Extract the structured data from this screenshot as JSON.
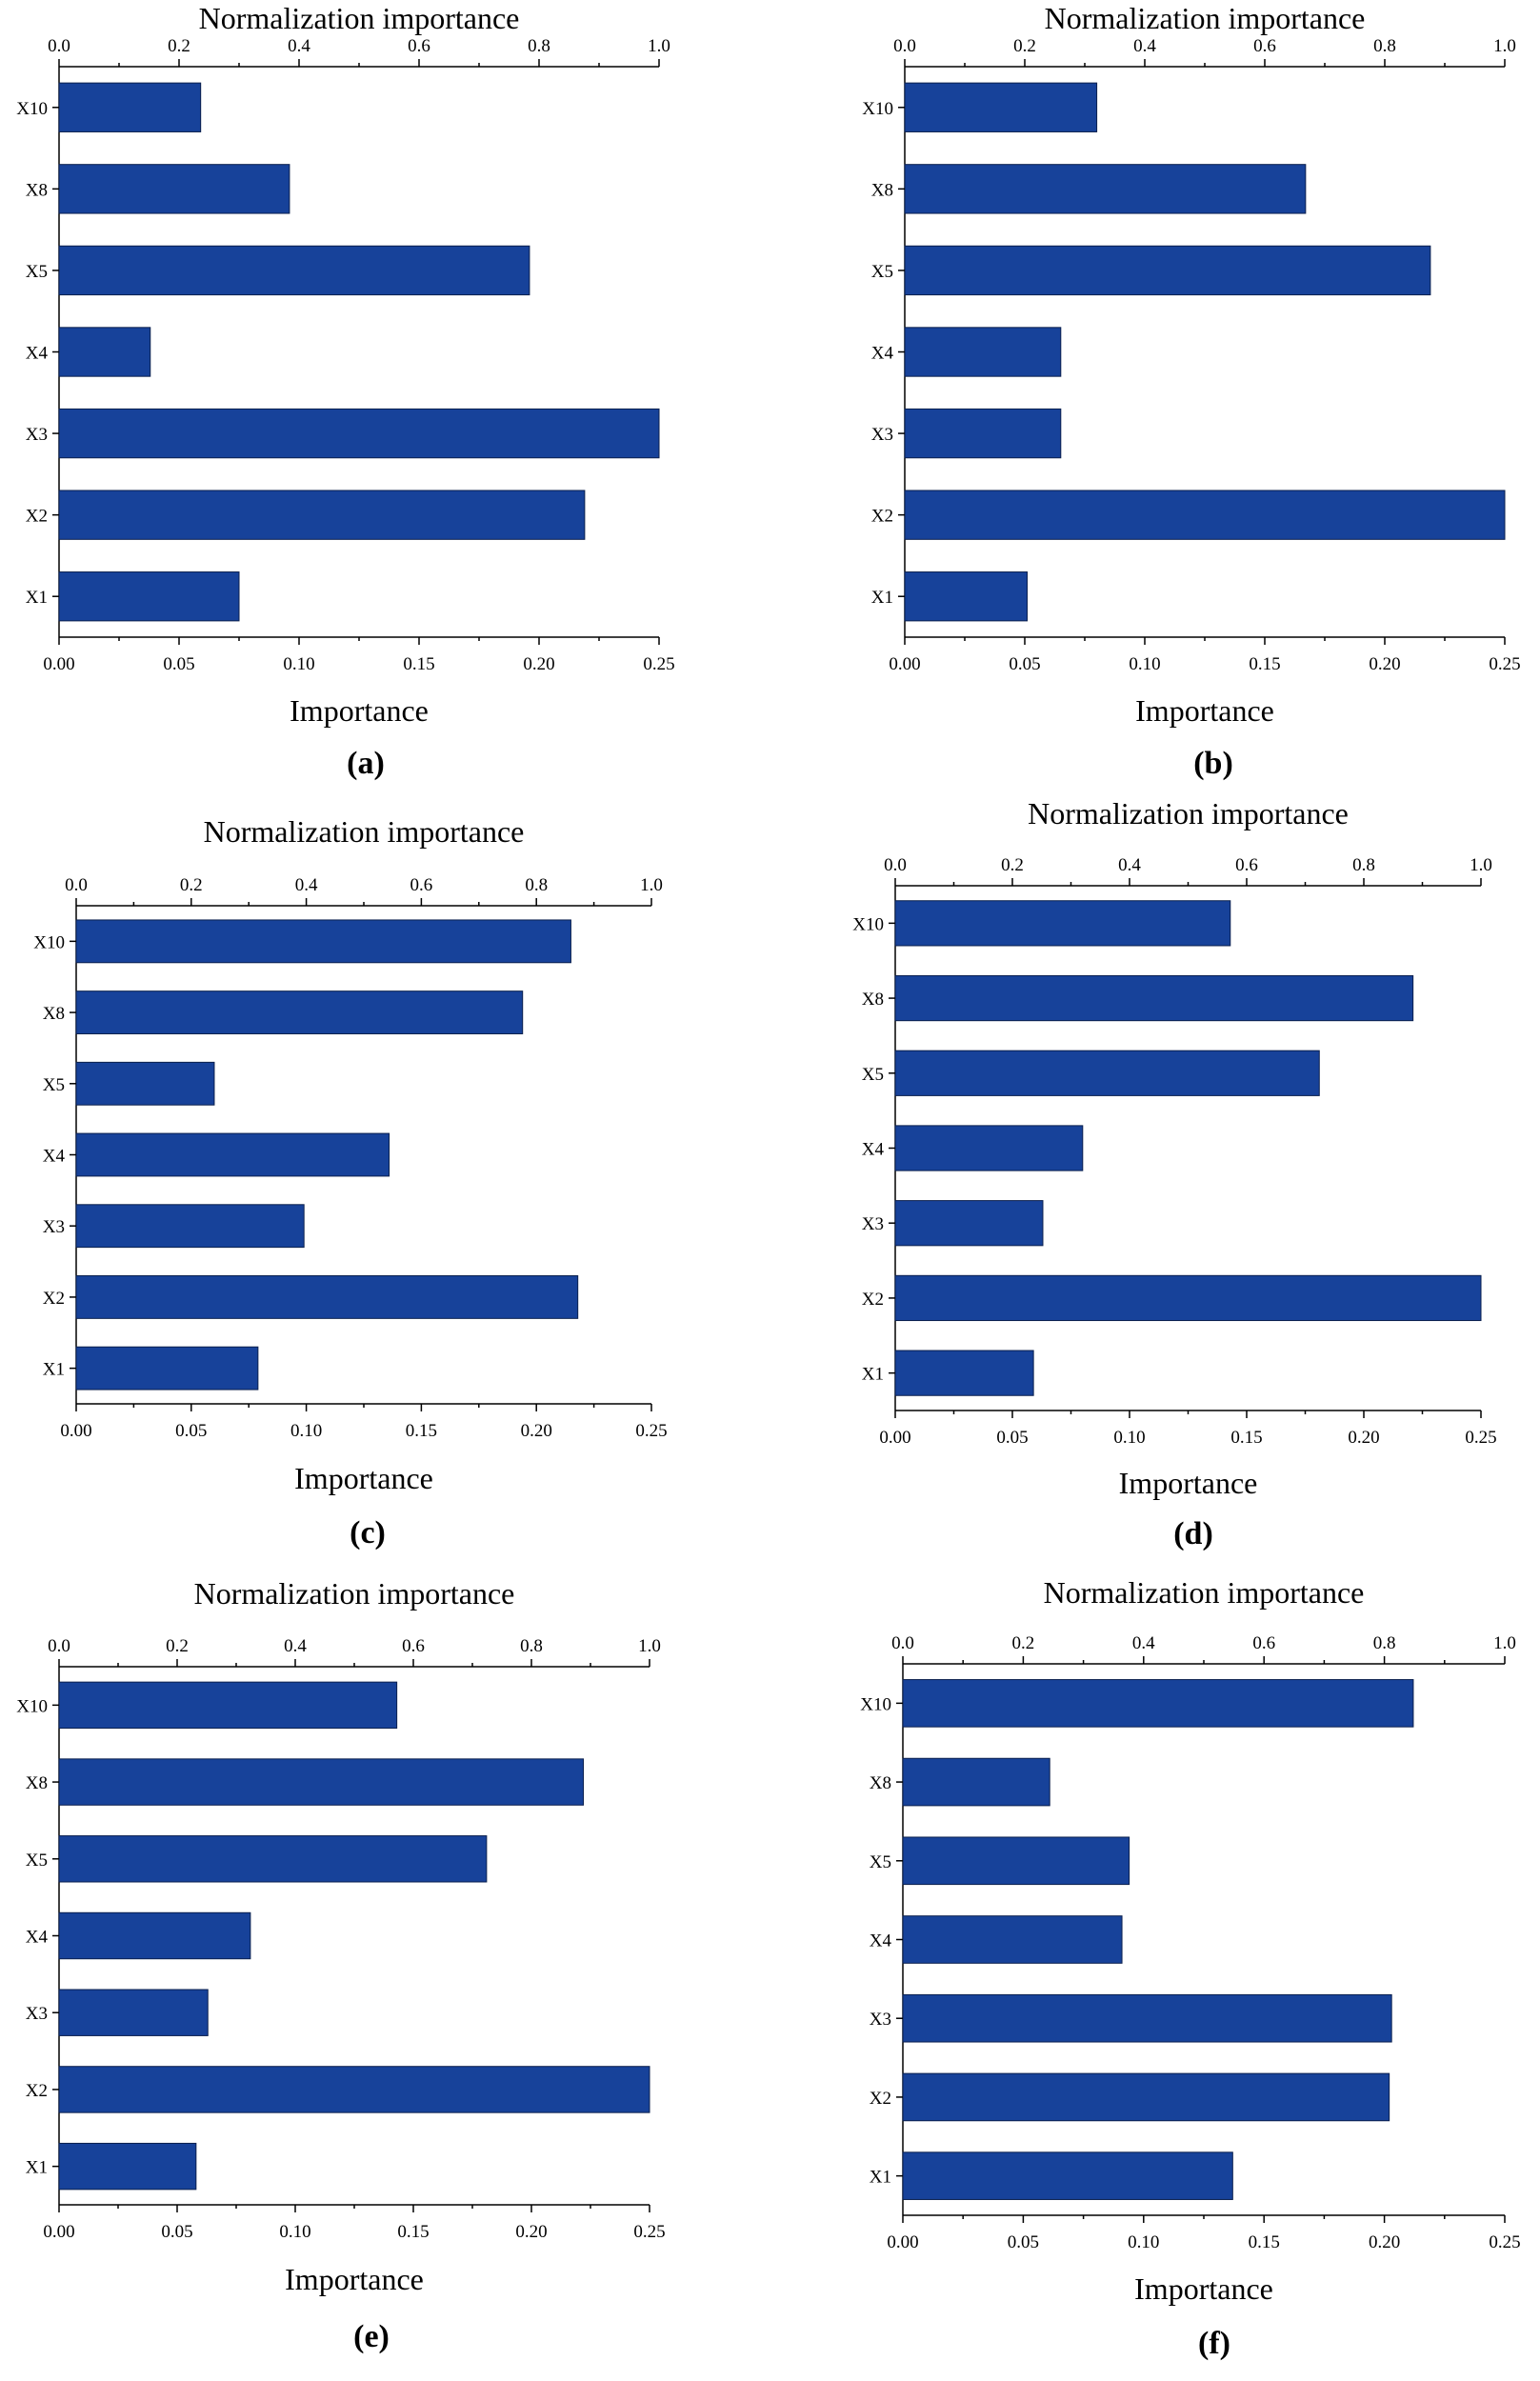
{
  "colors": {
    "bar": "#17429a",
    "bar_edge": "#0a1f4d",
    "axis": "#000000"
  },
  "chart_data": [
    {
      "type": "bar",
      "orientation": "horizontal",
      "panel_label": "(a)",
      "title": "Normalization importance",
      "xlabel": "Importance",
      "categories": [
        "X10",
        "X8",
        "X5",
        "X4",
        "X3",
        "X2",
        "X1"
      ],
      "values": [
        0.059,
        0.096,
        0.196,
        0.038,
        0.25,
        0.219,
        0.075
      ],
      "xlim": [
        0,
        0.25
      ],
      "x_ticks": [
        "0.00",
        "0.05",
        "0.10",
        "0.15",
        "0.20",
        "0.25"
      ],
      "top_xlim": [
        0,
        1.0
      ],
      "top_ticks": [
        "0.0",
        "0.2",
        "0.4",
        "0.6",
        "0.8",
        "1.0"
      ]
    },
    {
      "type": "bar",
      "orientation": "horizontal",
      "panel_label": "(b)",
      "title": "Normalization importance",
      "xlabel": "Importance",
      "categories": [
        "X10",
        "X8",
        "X5",
        "X4",
        "X3",
        "X2",
        "X1"
      ],
      "values": [
        0.08,
        0.167,
        0.219,
        0.065,
        0.065,
        0.25,
        0.051
      ],
      "xlim": [
        0,
        0.25
      ],
      "x_ticks": [
        "0.00",
        "0.05",
        "0.10",
        "0.15",
        "0.20",
        "0.25"
      ],
      "top_xlim": [
        0,
        1.0
      ],
      "top_ticks": [
        "0.0",
        "0.2",
        "0.4",
        "0.6",
        "0.8",
        "1.0"
      ]
    },
    {
      "type": "bar",
      "orientation": "horizontal",
      "panel_label": "(c)",
      "title": "Normalization importance",
      "xlabel": "Importance",
      "categories": [
        "X10",
        "X8",
        "X5",
        "X4",
        "X3",
        "X2",
        "X1"
      ],
      "values": [
        0.215,
        0.194,
        0.06,
        0.136,
        0.099,
        0.218,
        0.079
      ],
      "xlim": [
        0,
        0.25
      ],
      "x_ticks": [
        "0.00",
        "0.05",
        "0.10",
        "0.15",
        "0.20",
        "0.25"
      ],
      "top_xlim": [
        0,
        1.0
      ],
      "top_ticks": [
        "0.0",
        "0.2",
        "0.4",
        "0.6",
        "0.8",
        "1.0"
      ]
    },
    {
      "type": "bar",
      "orientation": "horizontal",
      "panel_label": "(d)",
      "title": "Normalization importance",
      "xlabel": "Importance",
      "categories": [
        "X10",
        "X8",
        "X5",
        "X4",
        "X3",
        "X2",
        "X1"
      ],
      "values": [
        0.143,
        0.221,
        0.181,
        0.08,
        0.063,
        0.25,
        0.059
      ],
      "xlim": [
        0,
        0.25
      ],
      "x_ticks": [
        "0.00",
        "0.05",
        "0.10",
        "0.15",
        "0.20",
        "0.25"
      ],
      "top_xlim": [
        0,
        1.0
      ],
      "top_ticks": [
        "0.0",
        "0.2",
        "0.4",
        "0.6",
        "0.8",
        "1.0"
      ]
    },
    {
      "type": "bar",
      "orientation": "horizontal",
      "panel_label": "(e)",
      "title": "Normalization importance",
      "xlabel": "Importance",
      "categories": [
        "X10",
        "X8",
        "X5",
        "X4",
        "X3",
        "X2",
        "X1"
      ],
      "values": [
        0.143,
        0.222,
        0.181,
        0.081,
        0.063,
        0.25,
        0.058
      ],
      "xlim": [
        0,
        0.25
      ],
      "x_ticks": [
        "0.00",
        "0.05",
        "0.10",
        "0.15",
        "0.20",
        "0.25"
      ],
      "top_xlim": [
        0,
        1.0
      ],
      "top_ticks": [
        "0.0",
        "0.2",
        "0.4",
        "0.6",
        "0.8",
        "1.0"
      ]
    },
    {
      "type": "bar",
      "orientation": "horizontal",
      "panel_label": "(f)",
      "title": "Normalization importance",
      "xlabel": "Importance",
      "categories": [
        "X10",
        "X8",
        "X5",
        "X4",
        "X3",
        "X2",
        "X1"
      ],
      "values": [
        0.212,
        0.061,
        0.094,
        0.091,
        0.203,
        0.202,
        0.137
      ],
      "xlim": [
        0,
        0.25
      ],
      "x_ticks": [
        "0.00",
        "0.05",
        "0.10",
        "0.15",
        "0.20",
        "0.25"
      ],
      "top_xlim": [
        0,
        1.0
      ],
      "top_ticks": [
        "0.0",
        "0.2",
        "0.4",
        "0.6",
        "0.8",
        "1.0"
      ]
    }
  ]
}
